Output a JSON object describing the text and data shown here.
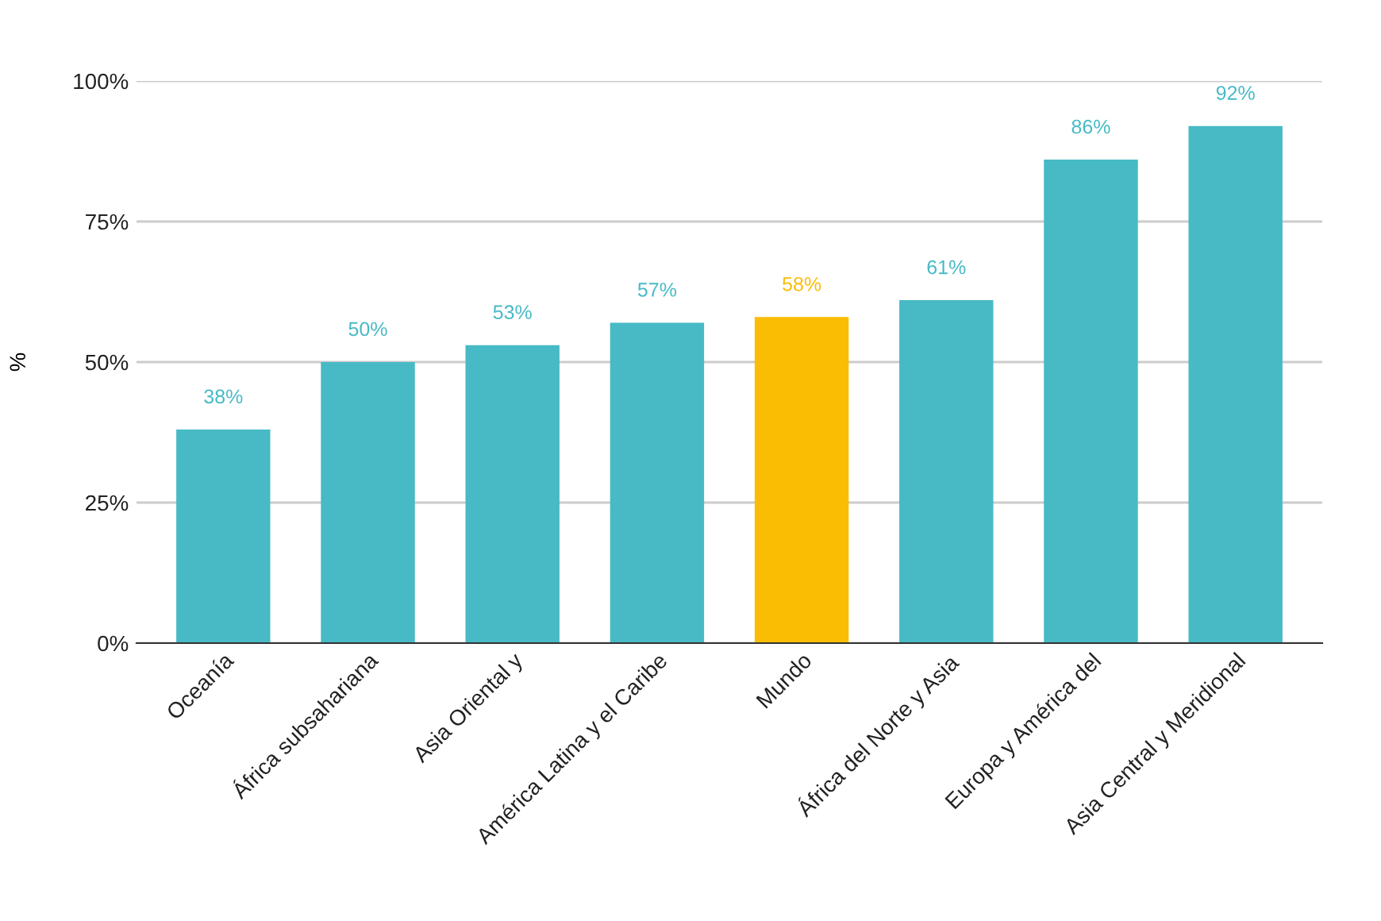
{
  "chart_data": {
    "type": "bar",
    "ylabel": "%",
    "categories": [
      "Oceanía",
      "África subsahariana",
      "Asia Oriental y",
      "América Latina y el Caribe",
      "Mundo",
      "África del Norte y Asia",
      "Europa y América del",
      "Asia Central y Meridional"
    ],
    "values": [
      38,
      50,
      53,
      57,
      58,
      61,
      86,
      92
    ],
    "value_labels": [
      "38%",
      "50%",
      "53%",
      "57%",
      "58%",
      "61%",
      "86%",
      "92%"
    ],
    "colors": [
      "#47bac5",
      "#47bac5",
      "#47bac5",
      "#47bac5",
      "#fbbc04",
      "#47bac5",
      "#47bac5",
      "#47bac5"
    ],
    "ylim": [
      0,
      100
    ],
    "yticks": [
      {
        "value": 0,
        "label": "0%"
      },
      {
        "value": 25,
        "label": "25%"
      },
      {
        "value": 50,
        "label": "50%"
      },
      {
        "value": 75,
        "label": "75%"
      },
      {
        "value": 100,
        "label": "100%"
      }
    ],
    "grid": "y",
    "legend": false
  }
}
